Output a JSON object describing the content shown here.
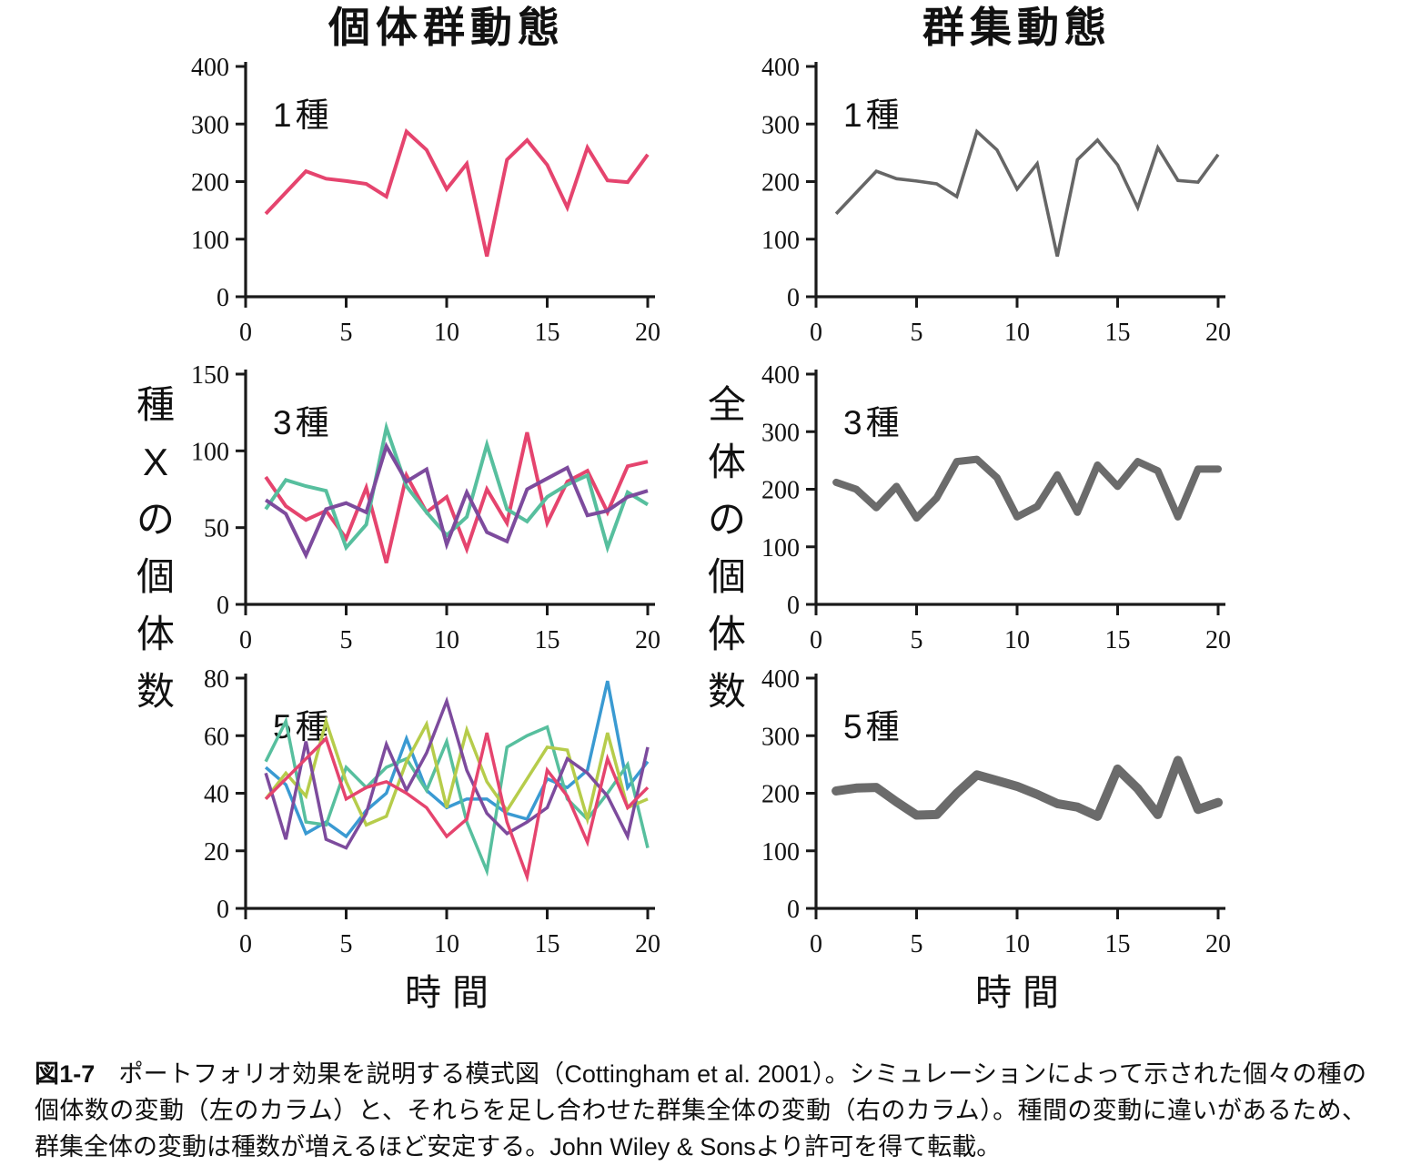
{
  "figure": {
    "left_column_title": "個体群動態",
    "right_column_title": "群集動態",
    "left_ylabel": "種Xの個体数",
    "right_ylabel": "全体の個体数",
    "xlabel": "時間"
  },
  "caption": {
    "label": "図1-7",
    "text": "ポートフォリオ効果を説明する模式図（Cottingham et al. 2001）。シミュレーションによって示された個々の種の個体数の変動（左のカラム）と、それらを足し合わせた群集全体の変動（右のカラム）。種間の変動に違いがあるため、群集全体の変動は種数が増えるほど安定する。John Wiley & Sonsより許可を得て転載。"
  },
  "colors": {
    "pink": "#e5446e",
    "teal": "#57bf9e",
    "purple": "#7d4b9d",
    "blue": "#3a9ad2",
    "lime": "#b6cc4b",
    "gray_thin": "#666666",
    "gray_thick": "#6b6b6b",
    "axis": "#1a1a1a"
  },
  "chart_data": [
    {
      "type": "line",
      "panel_label": "1種",
      "column": "population",
      "xlim": [
        0,
        20
      ],
      "ylim": [
        0,
        400
      ],
      "xticks": [
        0,
        5,
        10,
        15,
        20
      ],
      "yticks": [
        0,
        100,
        200,
        300,
        400
      ],
      "x_start": 1,
      "grid": false,
      "legend": "none",
      "series": [
        {
          "color": "#e5446e",
          "width": 4,
          "values": [
            144,
            181,
            218,
            205,
            201,
            196,
            174,
            287,
            255,
            187,
            231,
            70,
            238,
            272,
            229,
            155,
            259,
            202,
            199,
            247
          ]
        }
      ]
    },
    {
      "type": "line",
      "panel_label": "1種",
      "column": "community",
      "xlim": [
        0,
        20
      ],
      "ylim": [
        0,
        400
      ],
      "xticks": [
        0,
        5,
        10,
        15,
        20
      ],
      "yticks": [
        0,
        100,
        200,
        300,
        400
      ],
      "x_start": 1,
      "grid": false,
      "legend": "none",
      "series": [
        {
          "color": "#666666",
          "width": 3.6,
          "values": [
            144,
            181,
            218,
            205,
            201,
            196,
            174,
            287,
            255,
            187,
            231,
            70,
            238,
            272,
            229,
            155,
            259,
            202,
            199,
            247
          ]
        }
      ]
    },
    {
      "type": "line",
      "panel_label": "3種",
      "column": "population",
      "xlim": [
        0,
        20
      ],
      "ylim": [
        0,
        150
      ],
      "xticks": [
        0,
        5,
        10,
        15,
        20
      ],
      "yticks": [
        0,
        50,
        100,
        150
      ],
      "x_start": 1,
      "grid": false,
      "legend": "none",
      "series": [
        {
          "color": "#e5446e",
          "width": 4,
          "values": [
            83,
            64,
            55,
            61,
            43,
            76,
            27,
            84,
            60,
            70,
            36,
            75,
            53,
            112,
            53,
            80,
            87,
            60,
            90,
            93
          ]
        },
        {
          "color": "#57bf9e",
          "width": 4,
          "values": [
            62,
            81,
            77,
            74,
            37,
            52,
            115,
            77,
            60,
            45,
            57,
            104,
            62,
            54,
            70,
            78,
            84,
            37,
            73,
            65
          ]
        },
        {
          "color": "#7d4b9d",
          "width": 4,
          "values": [
            68,
            59,
            32,
            62,
            66,
            60,
            103,
            80,
            88,
            39,
            73,
            47,
            41,
            75,
            82,
            89,
            58,
            61,
            70,
            74
          ]
        }
      ]
    },
    {
      "type": "line",
      "panel_label": "3種",
      "column": "community",
      "xlim": [
        0,
        20
      ],
      "ylim": [
        0,
        400
      ],
      "xticks": [
        0,
        5,
        10,
        15,
        20
      ],
      "yticks": [
        0,
        100,
        200,
        300,
        400
      ],
      "x_start": 1,
      "grid": false,
      "legend": "none",
      "series": [
        {
          "color": "#6b6b6b",
          "width": 8,
          "values": [
            212,
            200,
            168,
            205,
            150,
            185,
            248,
            252,
            220,
            152,
            170,
            225,
            160,
            242,
            205,
            248,
            232,
            152,
            235,
            235
          ]
        }
      ]
    },
    {
      "type": "line",
      "panel_label": "5種",
      "column": "population",
      "xlim": [
        0,
        20
      ],
      "ylim": [
        0,
        80
      ],
      "xticks": [
        0,
        5,
        10,
        15,
        20
      ],
      "yticks": [
        0,
        20,
        40,
        60,
        80
      ],
      "x_start": 1,
      "grid": false,
      "legend": "none",
      "series": [
        {
          "color": "#3a9ad2",
          "width": 3.5,
          "values": [
            49,
            43,
            26,
            30,
            25,
            34,
            40,
            59,
            41,
            35,
            38,
            38,
            33,
            31,
            45,
            42,
            48,
            79,
            42,
            51
          ]
        },
        {
          "color": "#57bf9e",
          "width": 3.5,
          "values": [
            51,
            65,
            30,
            29,
            49,
            42,
            49,
            52,
            41,
            58,
            30,
            13,
            56,
            60,
            63,
            38,
            31,
            40,
            50,
            21
          ]
        },
        {
          "color": "#b6cc4b",
          "width": 3.5,
          "values": [
            38,
            47,
            39,
            65,
            44,
            29,
            32,
            51,
            64,
            35,
            62,
            44,
            34,
            45,
            56,
            55,
            31,
            61,
            35,
            38
          ]
        },
        {
          "color": "#7d4b9d",
          "width": 3.5,
          "values": [
            47,
            24,
            58,
            24,
            21,
            33,
            57,
            41,
            54,
            72,
            48,
            33,
            26,
            30,
            35,
            52,
            47,
            39,
            25,
            56
          ]
        },
        {
          "color": "#e5446e",
          "width": 3.5,
          "values": [
            38,
            45,
            52,
            59,
            38,
            42,
            44,
            40,
            35,
            25,
            31,
            61,
            30,
            11,
            48,
            39,
            23,
            52,
            35,
            42
          ]
        }
      ]
    },
    {
      "type": "line",
      "panel_label": "5種",
      "column": "community",
      "xlim": [
        0,
        20
      ],
      "ylim": [
        0,
        400
      ],
      "xticks": [
        0,
        5,
        10,
        15,
        20
      ],
      "yticks": [
        0,
        100,
        200,
        300,
        400
      ],
      "x_start": 1,
      "grid": false,
      "legend": "none",
      "series": [
        {
          "color": "#6b6b6b",
          "width": 10,
          "values": [
            204,
            209,
            210,
            185,
            162,
            163,
            200,
            232,
            222,
            212,
            198,
            182,
            176,
            160,
            242,
            208,
            163,
            257,
            172,
            184
          ]
        }
      ]
    }
  ]
}
